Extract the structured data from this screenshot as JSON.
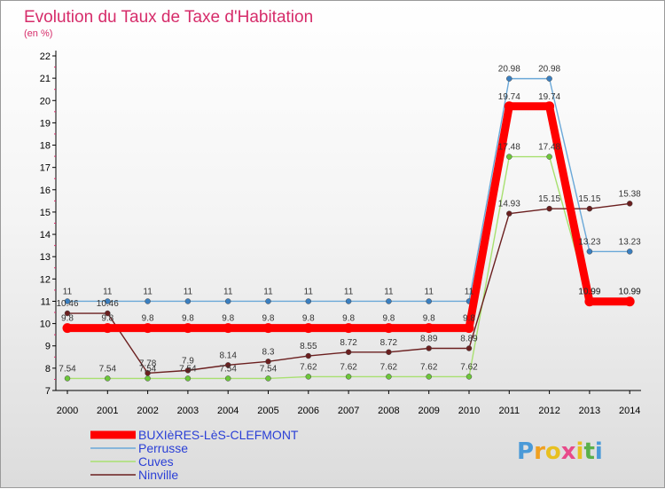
{
  "chart_data": {
    "type": "line",
    "title": "Evolution du Taux de Taxe d'Habitation",
    "subtitle": "(en %)",
    "xlabel": "",
    "ylabel": "",
    "categories": [
      "2000",
      "2001",
      "2002",
      "2003",
      "2004",
      "2005",
      "2006",
      "2007",
      "2008",
      "2009",
      "2010",
      "2011",
      "2012",
      "2013",
      "2014"
    ],
    "y_ticks": [
      "7",
      "8",
      "9",
      "10",
      "11",
      "12",
      "13",
      "14",
      "15",
      "16",
      "17",
      "18",
      "19",
      "20",
      "21",
      "22"
    ],
    "ylim": [
      7,
      22
    ],
    "grid": false,
    "legend_position": "bottom-left",
    "series": [
      {
        "name": "BUXIèRES-LèS-CLEFMONT",
        "color": "#ff0000",
        "marker_color": "#ff0000",
        "values": [
          9.8,
          9.8,
          9.8,
          9.8,
          9.8,
          9.8,
          9.8,
          9.8,
          9.8,
          9.8,
          9.8,
          19.74,
          19.74,
          10.99,
          10.99
        ],
        "labels": [
          "9.8",
          "9.8",
          "9.8",
          "9.8",
          "9.8",
          "9.8",
          "9.8",
          "9.8",
          "9.8",
          "9.8",
          "9.8",
          "19.74",
          "19.74",
          "10.99",
          "10.99"
        ]
      },
      {
        "name": "Perrusse",
        "color": "#6aa8d8",
        "marker_color": "#3a7fc0",
        "values": [
          11,
          11,
          11,
          11,
          11,
          11,
          11,
          11,
          11,
          11,
          11,
          20.98,
          20.98,
          13.23,
          13.23
        ],
        "labels": [
          "11",
          "11",
          "11",
          "11",
          "11",
          "11",
          "11",
          "11",
          "11",
          "11",
          "11",
          "20.98",
          "20.98",
          "13.23",
          "13.23"
        ]
      },
      {
        "name": "Cuves",
        "color": "#a8e070",
        "marker_color": "#6cc63a",
        "values": [
          7.54,
          7.54,
          7.54,
          7.54,
          7.54,
          7.54,
          7.62,
          7.62,
          7.62,
          7.62,
          7.62,
          17.48,
          17.48,
          10.99,
          10.99
        ],
        "labels": [
          "7.54",
          "7.54",
          "7.54",
          "7.54",
          "7.54",
          "7.54",
          "7.62",
          "7.62",
          "7.62",
          "7.62",
          "7.62",
          "17.48",
          "17.48",
          "10.99",
          "10.99"
        ]
      },
      {
        "name": "Ninville",
        "color": "#6b1f1f",
        "marker_color": "#6b1f1f",
        "values": [
          10.46,
          10.46,
          7.78,
          7.9,
          8.14,
          8.3,
          8.55,
          8.72,
          8.72,
          8.89,
          8.89,
          14.93,
          15.15,
          15.15,
          15.38
        ],
        "labels": [
          "10.46",
          "10.46",
          "7.78",
          "7.9",
          "8.14",
          "8.3",
          "8.55",
          "8.72",
          "8.72",
          "8.89",
          "8.89",
          "14.93",
          "15.15",
          "15.15",
          "15.38"
        ]
      }
    ]
  },
  "logo": {
    "letters": [
      "P",
      "r",
      "o",
      "x",
      "i",
      "t",
      "i"
    ],
    "colors": [
      "#4a9ad8",
      "#f0a020",
      "#e8c020",
      "#e84a8a",
      "#e8c020",
      "#5ab04a",
      "#4a9ad8"
    ]
  }
}
